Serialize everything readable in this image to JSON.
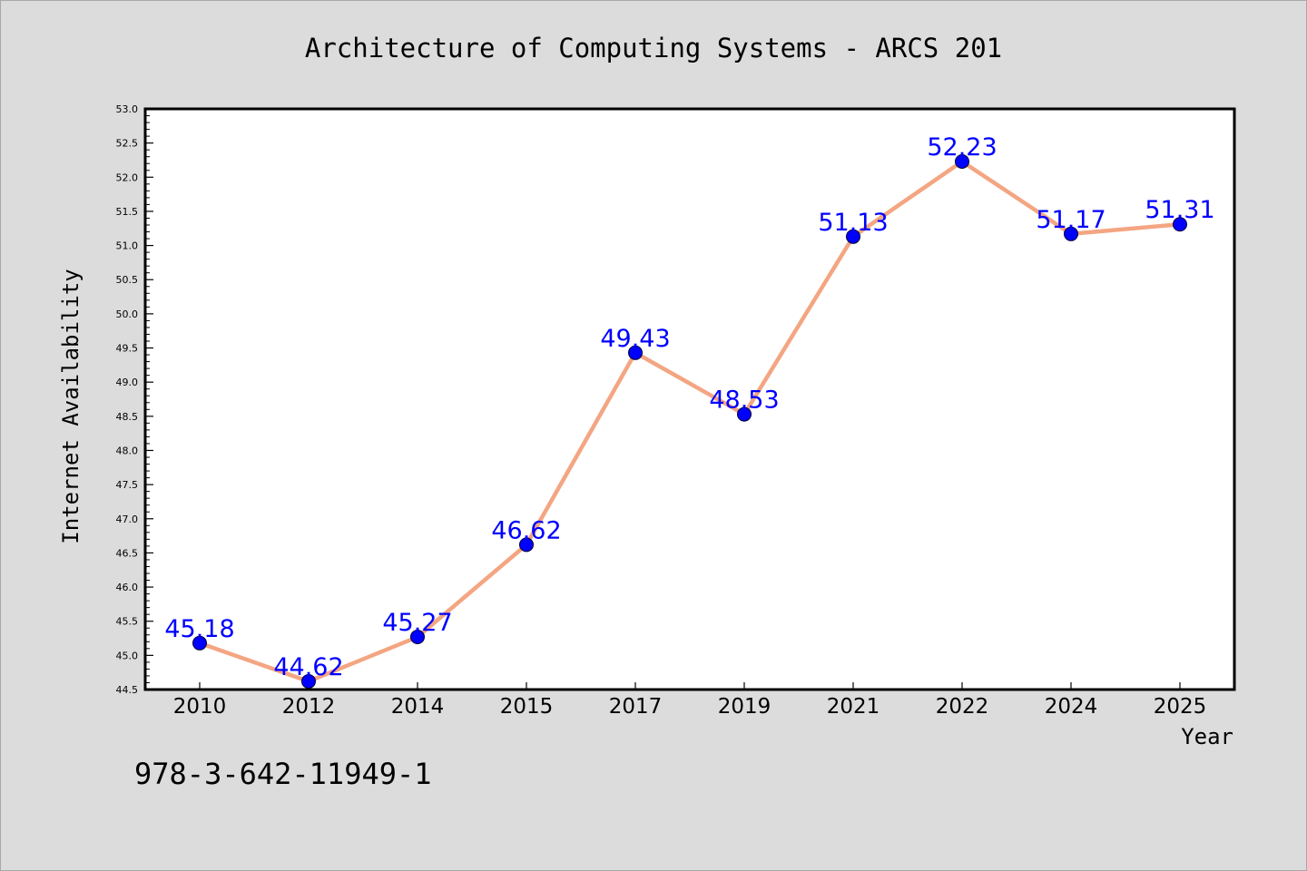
{
  "chart_data": {
    "type": "line",
    "title": "Architecture of Computing Systems - ARCS 201",
    "xlabel": "Year",
    "ylabel": "Internet Availability",
    "categories": [
      "2010",
      "2012",
      "2014",
      "2015",
      "2017",
      "2019",
      "2021",
      "2022",
      "2024",
      "2025"
    ],
    "series": [
      {
        "values": [
          45.18,
          44.62,
          45.27,
          46.62,
          49.43,
          48.53,
          51.13,
          52.23,
          51.17,
          51.31
        ]
      }
    ],
    "data_labels": [
      "45.18",
      "44.62",
      "45.27",
      "46.62",
      "49.43",
      "48.53",
      "51.13",
      "52.23",
      "51.17",
      "51.31"
    ],
    "ylim": [
      44.5,
      53.0
    ],
    "y_ticks": [
      "44.5",
      "45.0",
      "45.5",
      "46.0",
      "46.5",
      "47.0",
      "47.5",
      "48.0",
      "48.5",
      "49.0",
      "49.5",
      "50.0",
      "50.5",
      "51.0",
      "51.5",
      "52.0",
      "52.5",
      "53.0"
    ],
    "grid": false,
    "legend": "none",
    "colors": {
      "line": "#f4a582",
      "marker": "#0000ff",
      "labels": "#0000ff",
      "background": "#dcdcdc",
      "plot_background": "#ffffff"
    }
  },
  "annotation": "978-3-642-11949-1"
}
